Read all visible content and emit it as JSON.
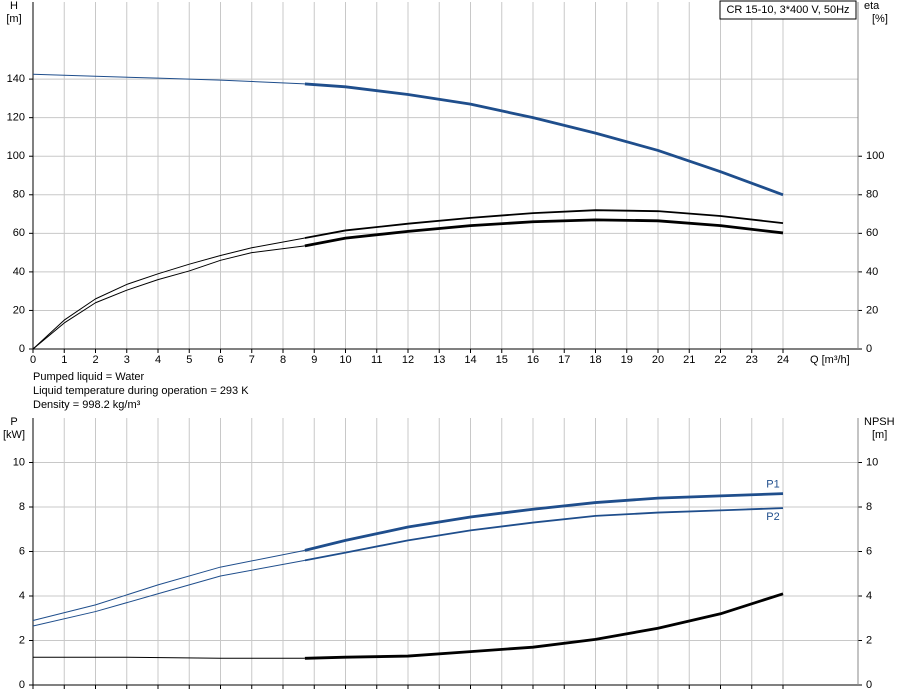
{
  "chart_data": [
    {
      "type": "line",
      "title": "CR 15-10, 3*400 V, 50Hz",
      "xlabel": "Q [m³/h]",
      "ylabel": "H",
      "yunit": "[m]",
      "y2label": "eta",
      "y2unit": "[%]",
      "xlim": [
        0,
        26.4
      ],
      "xticks": [
        0,
        1,
        2,
        3,
        4,
        5,
        6,
        7,
        8,
        9,
        10,
        11,
        12,
        13,
        14,
        15,
        16,
        17,
        18,
        19,
        20,
        21,
        22,
        23,
        24
      ],
      "ylim": [
        0,
        180
      ],
      "yticks": [
        0,
        20,
        40,
        60,
        80,
        100,
        120,
        140
      ],
      "y2lim": [
        0,
        180
      ],
      "y2ticks": [
        0,
        20,
        40,
        60,
        80,
        100
      ],
      "grid": true,
      "notes": [
        "Pumped liquid = Water",
        "Liquid temperature during operation = 293 K",
        "Density = 998.2 kg/m³"
      ],
      "series": [
        {
          "color": "#1f4e8c",
          "weight": "thin",
          "x": [
            0,
            2,
            4,
            6,
            8.7
          ],
          "values": [
            142.5,
            141.5,
            140.5,
            139.5,
            137.5
          ]
        },
        {
          "color": "#1f4e8c",
          "weight": "bold",
          "x": [
            8.7,
            10,
            12,
            14,
            16,
            18,
            20,
            22,
            24
          ],
          "values": [
            137.5,
            136,
            132,
            127,
            120,
            112,
            103,
            92,
            80
          ]
        },
        {
          "color": "#000000",
          "weight": "thin",
          "axis": "y2",
          "x": [
            0,
            1,
            2,
            3,
            4,
            5,
            6,
            7,
            8.7
          ],
          "values": [
            0,
            15,
            26,
            33.5,
            39,
            44,
            48.5,
            52.5,
            57.6
          ]
        },
        {
          "color": "#000000",
          "weight": "medium",
          "axis": "y2",
          "x": [
            8.7,
            10,
            12,
            14,
            16,
            18,
            20,
            22,
            24
          ],
          "values": [
            57.6,
            61.5,
            65,
            68,
            70.5,
            72,
            71.5,
            69,
            65.3
          ]
        },
        {
          "color": "#000000",
          "weight": "thin",
          "axis": "y2",
          "x": [
            0,
            1,
            2,
            3,
            4,
            5,
            6,
            7,
            8.7
          ],
          "values": [
            0,
            13.5,
            24,
            30.5,
            36,
            40.5,
            46,
            50,
            53.5
          ]
        },
        {
          "color": "#000000",
          "weight": "bold",
          "axis": "y2",
          "x": [
            8.7,
            10,
            12,
            14,
            16,
            18,
            20,
            22,
            24
          ],
          "values": [
            53.5,
            57.5,
            61,
            64,
            66,
            67,
            66.5,
            64,
            60.2
          ]
        }
      ]
    },
    {
      "type": "line",
      "ylabel": "P",
      "yunit": "[kW]",
      "y2label": "NPSH",
      "y2unit": "[m]",
      "xlim": [
        0,
        26.4
      ],
      "xticks": [
        0,
        1,
        2,
        3,
        4,
        5,
        6,
        7,
        8,
        9,
        10,
        11,
        12,
        13,
        14,
        15,
        16,
        17,
        18,
        19,
        20,
        21,
        22,
        23,
        24
      ],
      "show_xtick_labels": false,
      "ylim": [
        0,
        12
      ],
      "yticks": [
        0,
        2,
        4,
        6,
        8,
        10
      ],
      "y2lim": [
        0,
        12
      ],
      "y2ticks": [
        0,
        2,
        4,
        6,
        8,
        10
      ],
      "grid": true,
      "series": [
        {
          "color": "#1f4e8c",
          "weight": "thin",
          "x": [
            0,
            2,
            4,
            6,
            8.7
          ],
          "values": [
            2.9,
            3.6,
            4.5,
            5.3,
            6.05
          ]
        },
        {
          "name": "P1",
          "color": "#1f4e8c",
          "weight": "bold",
          "x": [
            8.7,
            10,
            12,
            14,
            16,
            18,
            20,
            22,
            24
          ],
          "values": [
            6.05,
            6.5,
            7.1,
            7.55,
            7.9,
            8.2,
            8.4,
            8.5,
            8.6
          ]
        },
        {
          "color": "#1f4e8c",
          "weight": "thin",
          "x": [
            0,
            2,
            4,
            6,
            8.7
          ],
          "values": [
            2.65,
            3.3,
            4.1,
            4.9,
            5.6
          ]
        },
        {
          "name": "P2",
          "color": "#1f4e8c",
          "weight": "medium",
          "x": [
            8.7,
            10,
            12,
            14,
            16,
            18,
            20,
            22,
            24
          ],
          "values": [
            5.6,
            5.95,
            6.5,
            6.95,
            7.3,
            7.6,
            7.75,
            7.85,
            7.95
          ]
        },
        {
          "color": "#000000",
          "weight": "thin",
          "axis": "y2",
          "x": [
            0,
            3,
            6,
            8.7
          ],
          "values": [
            1.25,
            1.25,
            1.2,
            1.2
          ]
        },
        {
          "color": "#000000",
          "weight": "bold",
          "axis": "y2",
          "x": [
            8.7,
            10,
            12,
            14,
            16,
            18,
            20,
            22,
            24
          ],
          "values": [
            1.2,
            1.25,
            1.3,
            1.5,
            1.7,
            2.05,
            2.55,
            3.2,
            4.1
          ]
        }
      ]
    }
  ]
}
